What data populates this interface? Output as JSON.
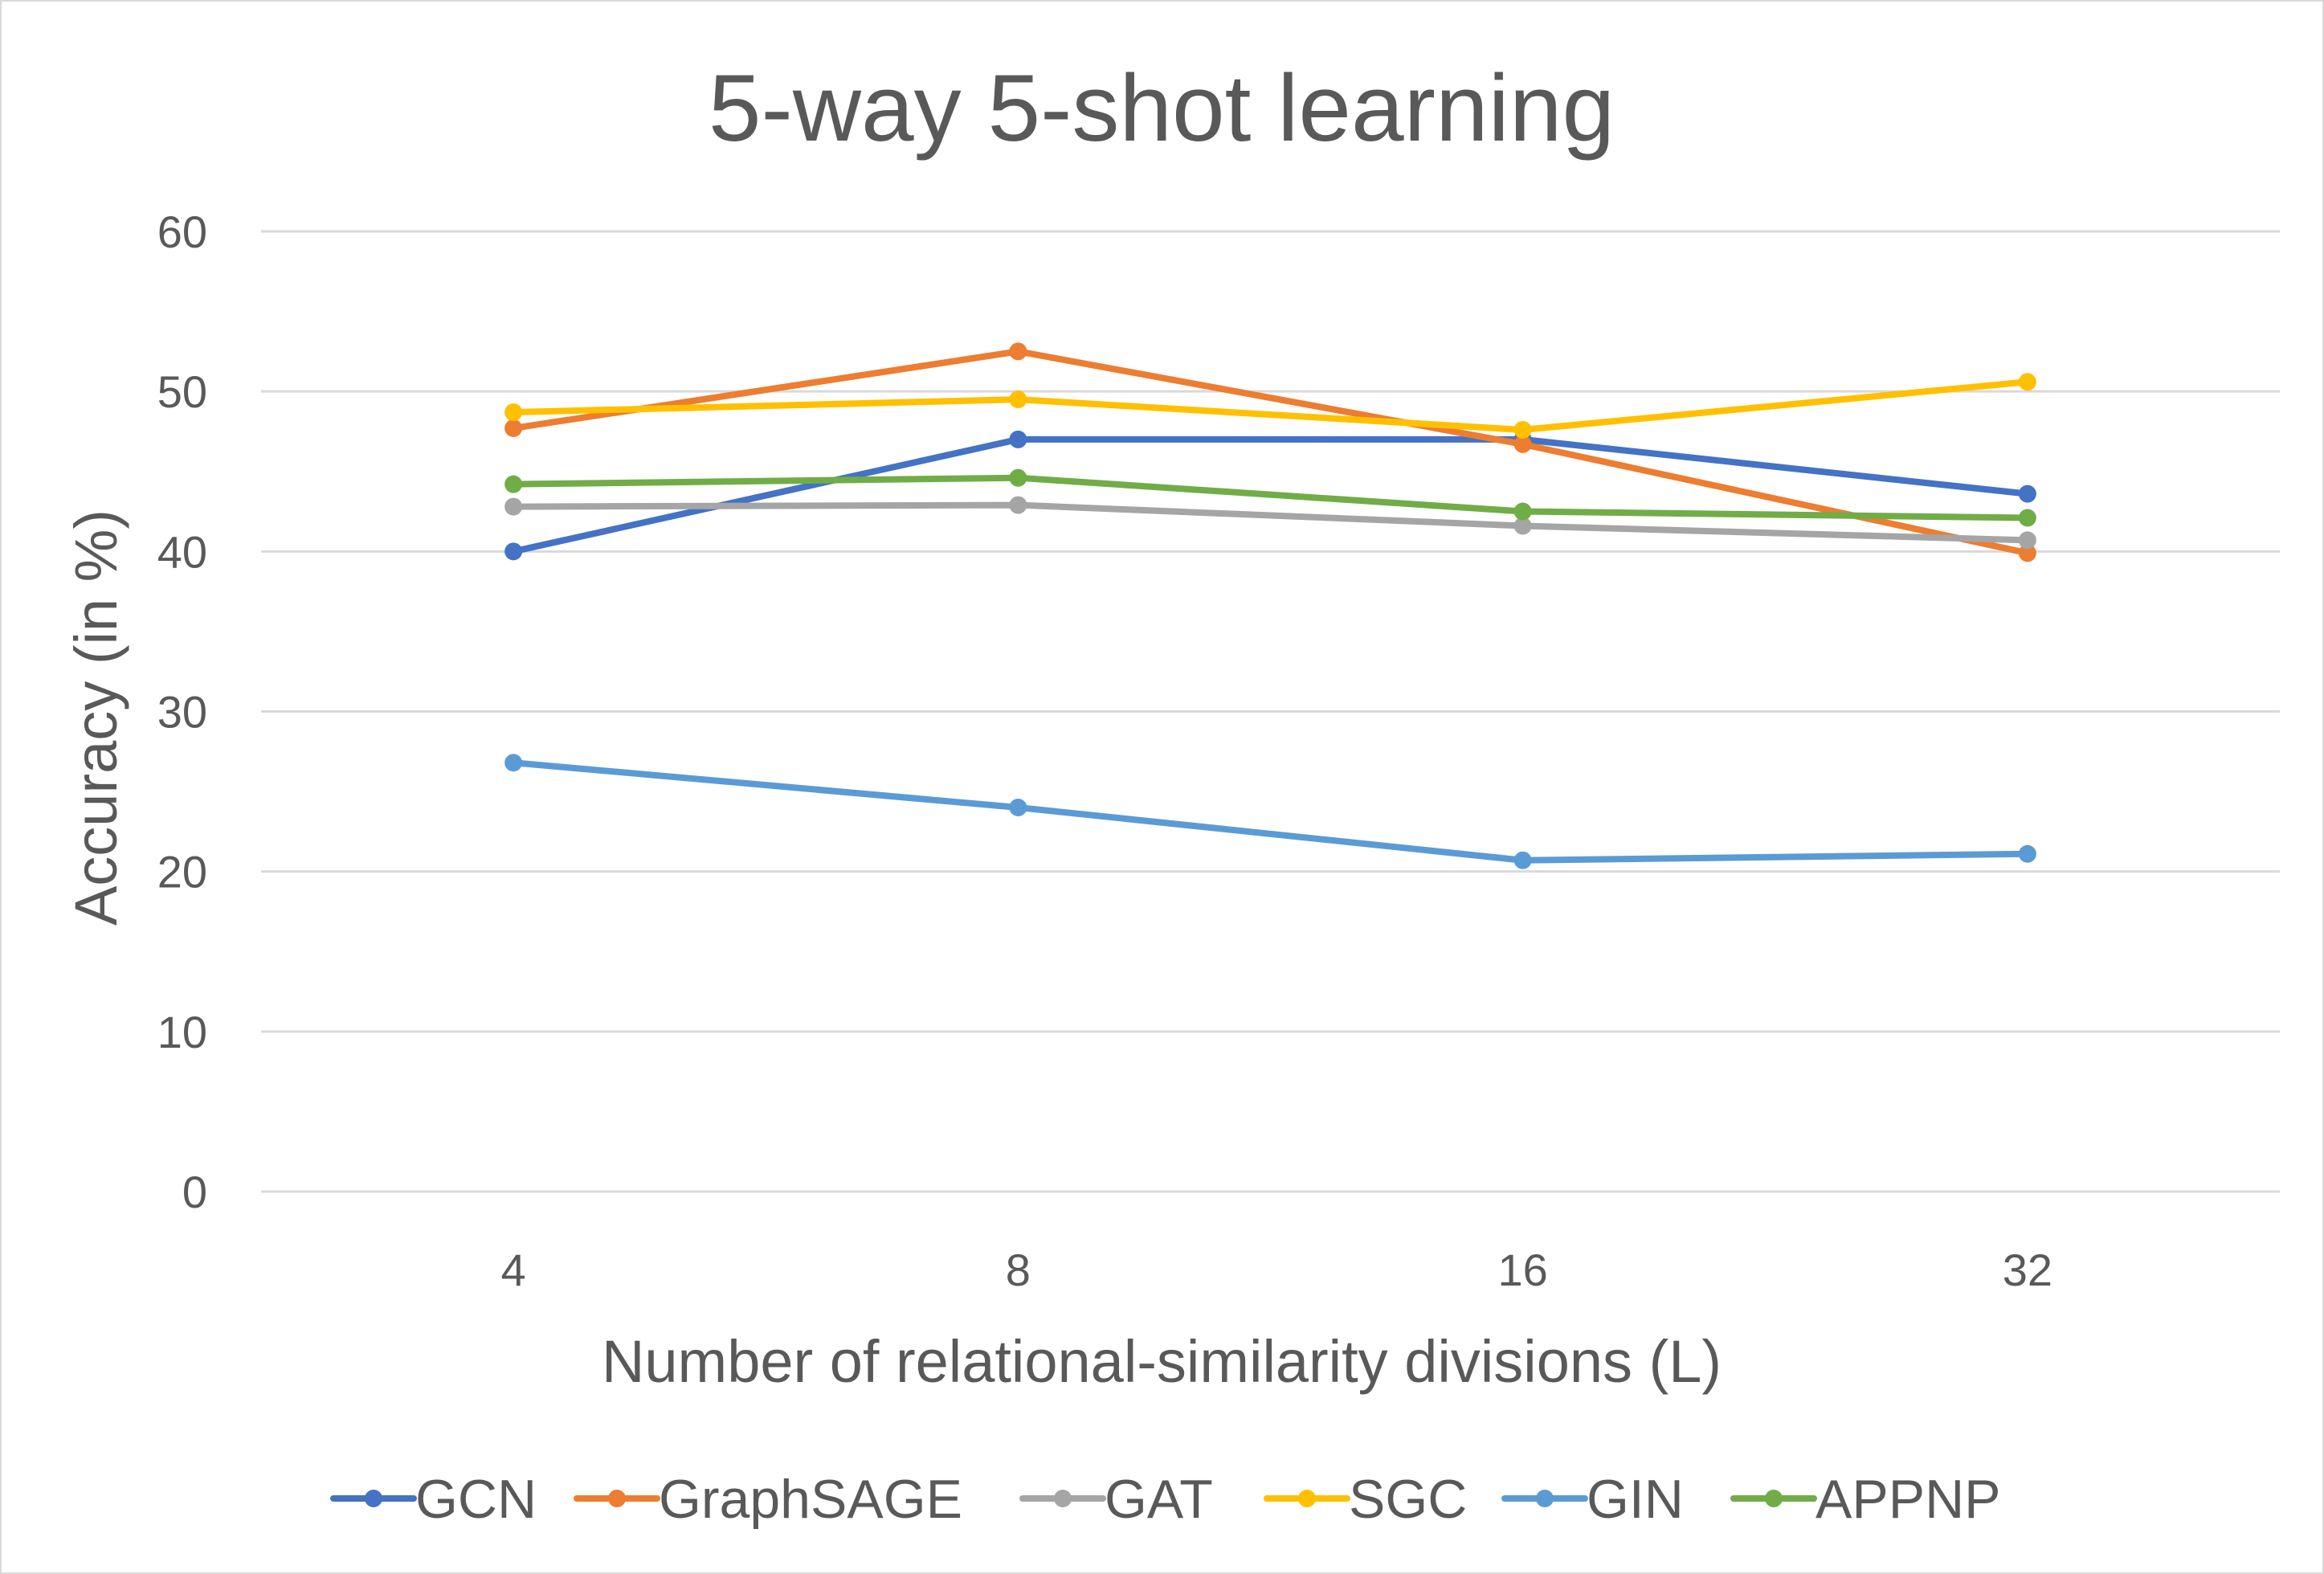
{
  "chart_data": {
    "type": "line",
    "title": "5-way 5-shot learning",
    "xlabel": "Number of  relational-similarity divisions (L)",
    "ylabel": "Accuracy (in %)",
    "categories": [
      "4",
      "8",
      "16",
      "32"
    ],
    "ylim": [
      0,
      60
    ],
    "yticks": [
      "0",
      "10",
      "20",
      "30",
      "40",
      "50",
      "60"
    ],
    "grid": true,
    "legend_position": "bottom",
    "series": [
      {
        "name": "GCN",
        "color": "#4472c4",
        "values": [
          40.0,
          47.0,
          47.0,
          43.6
        ]
      },
      {
        "name": "GraphSAGE",
        "color": "#ed7d31",
        "values": [
          47.7,
          52.5,
          46.7,
          39.9
        ]
      },
      {
        "name": "GAT",
        "color": "#a5a5a5",
        "values": [
          42.8,
          42.9,
          41.6,
          40.7
        ]
      },
      {
        "name": "SGC",
        "color": "#ffc000",
        "values": [
          48.7,
          49.5,
          47.6,
          50.6
        ]
      },
      {
        "name": "GIN",
        "color": "#5b9bd5",
        "values": [
          26.8,
          24.0,
          20.7,
          21.1
        ]
      },
      {
        "name": "APPNP",
        "color": "#70ad47",
        "values": [
          44.2,
          44.6,
          42.5,
          42.1
        ]
      }
    ]
  }
}
